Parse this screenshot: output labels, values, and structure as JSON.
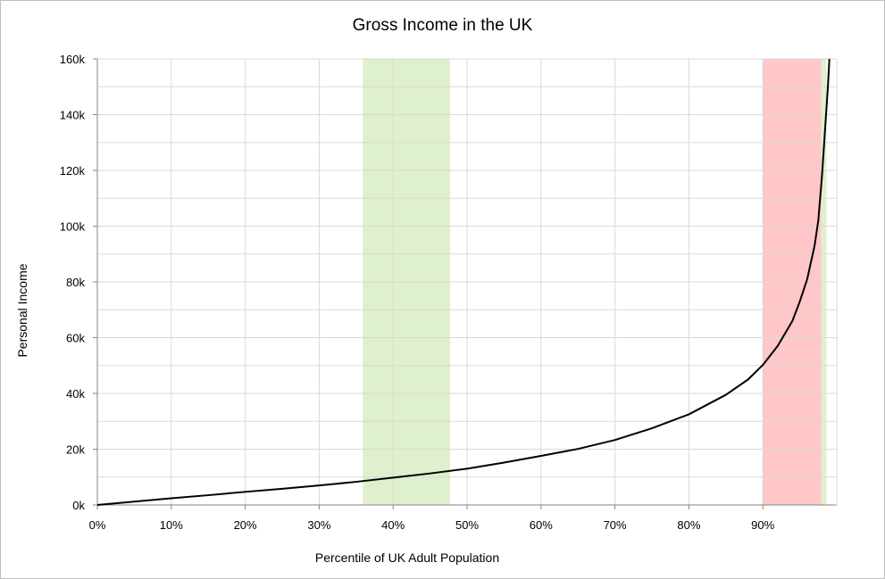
{
  "chart_data": {
    "type": "line",
    "title": "Gross Income in the UK",
    "xlabel": "Percentile of UK Adult Population",
    "ylabel": "Personal Income",
    "xlim": [
      0,
      100
    ],
    "ylim": [
      0,
      160000
    ],
    "x_ticks": [
      0,
      10,
      20,
      30,
      40,
      50,
      60,
      70,
      80,
      90
    ],
    "x_tick_labels": [
      "0%",
      "10%",
      "20%",
      "30%",
      "40%",
      "50%",
      "60%",
      "70%",
      "80%",
      "90%"
    ],
    "y_ticks": [
      0,
      20000,
      40000,
      60000,
      80000,
      100000,
      120000,
      140000,
      160000
    ],
    "y_tick_labels": [
      "0k",
      "20k",
      "40k",
      "60k",
      "80k",
      "100k",
      "120k",
      "140k",
      "160k"
    ],
    "grid": true,
    "bands": [
      {
        "x": [
          35.9,
          47.7
        ],
        "color": "#dff0cc"
      },
      {
        "x": [
          90.0,
          97.9
        ],
        "color": "#ffc7c7"
      },
      {
        "x": [
          97.9,
          98.6
        ],
        "color": "#dff0cc"
      }
    ],
    "series": [
      {
        "color": "#000000",
        "x": [
          0,
          5,
          10,
          15,
          20,
          25,
          30,
          35,
          40,
          45,
          50,
          55,
          60,
          65,
          70,
          75,
          80,
          85,
          88,
          90,
          92,
          94,
          95,
          96,
          97,
          97.5,
          98,
          98.5,
          98.8,
          99
        ],
        "y": [
          0,
          1200,
          2400,
          3500,
          4700,
          5800,
          7000,
          8300,
          9800,
          11300,
          13000,
          15200,
          17600,
          20100,
          23300,
          27500,
          32500,
          39500,
          45000,
          50200,
          57000,
          66000,
          73000,
          81000,
          93000,
          102000,
          118000,
          138000,
          150000,
          160000
        ]
      }
    ]
  }
}
